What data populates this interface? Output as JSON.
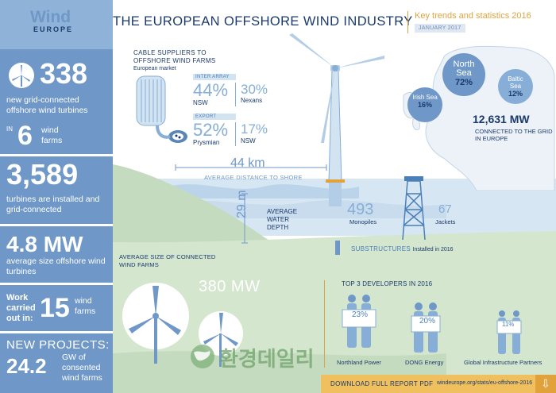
{
  "header": {
    "logo_top": "Wind",
    "logo_bottom": "EUROPE",
    "title": "THE EUROPEAN OFFSHORE WIND INDUSTRY",
    "subtitle": "Key trends and statistics 2016",
    "date": "JANUARY 2017"
  },
  "left": {
    "turbines_new": "338",
    "turbines_new_desc": "new grid-connected offshore wind turbines",
    "in_label": "IN",
    "farms_count": "6",
    "farms_label": "wind farms",
    "installed_total": "3,589",
    "installed_desc": "turbines are installed and grid-connected",
    "avg_size": "4.8 MW",
    "avg_size_desc": "average size offshore wind turbines",
    "work_label": "Work carried out in:",
    "work_count": "15",
    "work_unit": "wind farms",
    "new_projects_label": "NEW PROJECTS:",
    "new_projects_value": "24.2",
    "new_projects_desc": "GW of consented wind farms"
  },
  "cables": {
    "title": "CABLE SUPPLIERS TO OFFSHORE WIND FARMS",
    "market": "European market",
    "inter_array_tag": "INTER ARRAY",
    "inter_main_pct": "44%",
    "inter_main_name": "NSW",
    "inter_second_pct": "30%",
    "inter_second_name": "Nexans",
    "export_tag": "EXPORT",
    "export_main_pct": "52%",
    "export_main_name": "Prysmian",
    "export_second_pct": "17%",
    "export_second_name": "NSW"
  },
  "map": {
    "north_sea_label": "North Sea",
    "north_sea_pct": "72%",
    "baltic_label": "Baltic Sea",
    "baltic_pct": "12%",
    "irish_label": "Irish Sea",
    "irish_pct": "16%",
    "grid_mw": "12,631 MW",
    "grid_desc": "CONNECTED TO THE GRID IN EUROPE"
  },
  "distance": {
    "value": "44 km",
    "label": "AVERAGE DISTANCE TO SHORE"
  },
  "depth": {
    "value": "29 m",
    "label": "AVERAGE WATER DEPTH"
  },
  "substructures": {
    "monopiles_count": "493",
    "monopiles_label": "Monopiles",
    "jackets_count": "67",
    "jackets_label": "Jackets",
    "title": "SUBSTRUCTURES",
    "suffix": "Installed in 2016"
  },
  "farm_size": {
    "label": "AVERAGE SIZE OF CONNECTED WIND FARMS",
    "value": "380 MW"
  },
  "developers": {
    "title": "TOP 3 DEVELOPERS IN 2016",
    "items": [
      {
        "pct": "23%",
        "name": "Northland Power"
      },
      {
        "pct": "20%",
        "name": "DONG Energy"
      },
      {
        "pct": "11%",
        "name": "Global Infrastructure Partners"
      }
    ]
  },
  "download": {
    "label": "DOWNLOAD FULL REPORT PDF",
    "url": "windeurope.org/stats/eu-offshore-2016",
    "icon": "download-arrow-icon"
  },
  "watermark": "환경데일리",
  "colors": {
    "navy": "#1b3a6b",
    "panel_blue": "#6f98c8",
    "light_blue": "#8fb3d8",
    "accent_orange": "#e2a23b",
    "sea_green": "#d5e6cf"
  }
}
